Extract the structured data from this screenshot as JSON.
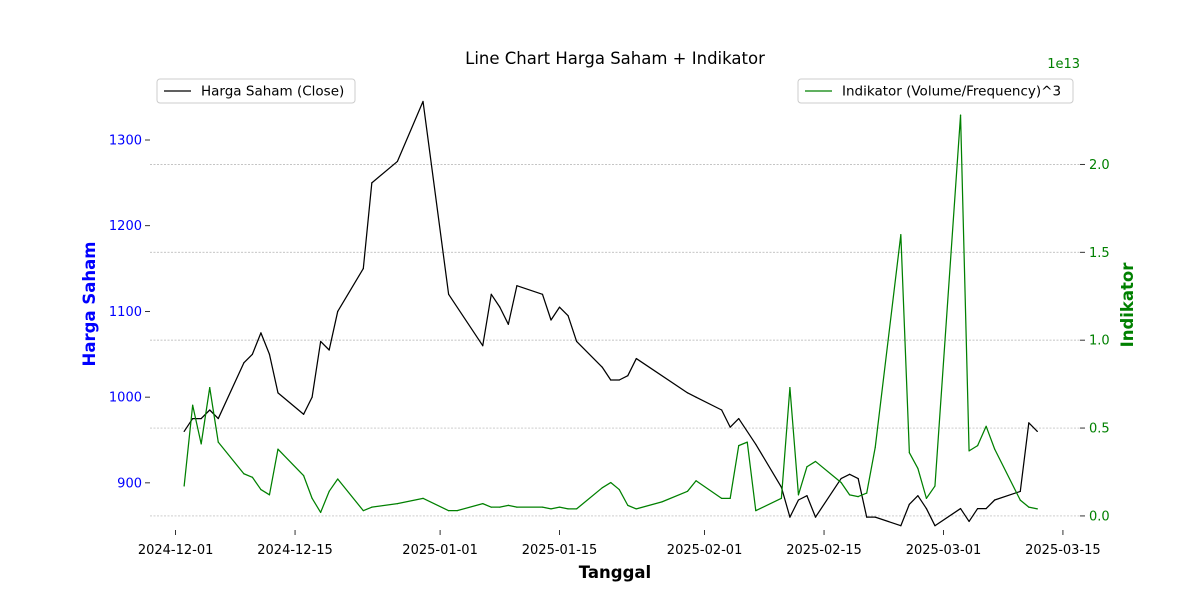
{
  "chart_data": {
    "type": "line",
    "title": "Line Chart Harga Saham + Indikator",
    "xlabel": "Tanggal",
    "ylabel_left": "Harga Saham",
    "ylabel_right": "Indikator",
    "right_offset_label": "1e13",
    "x_ticks": [
      "2024-12-01",
      "2024-12-15",
      "2025-01-01",
      "2025-01-15",
      "2025-02-01",
      "2025-02-15",
      "2025-03-01",
      "2025-03-15"
    ],
    "x_range": [
      "2024-11-28",
      "2025-03-17"
    ],
    "y_left_ticks": [
      900,
      1000,
      1100,
      1200,
      1300
    ],
    "y_left_range": [
      845,
      1370
    ],
    "y_right_ticks": [
      "0.0",
      "0.5",
      "1.0",
      "1.5",
      "2.0"
    ],
    "y_right_range": [
      -0.08,
      2.48
    ],
    "grid": "horizontal dashed on right axis",
    "legend_left": {
      "label": "Harga Saham (Close)",
      "placement": "top-left"
    },
    "legend_right": {
      "label": "Indikator (Volume/Frequency)^3",
      "placement": "top-right"
    },
    "colors": {
      "price": "#000000",
      "indicator": "#008000",
      "left_axis": "#0000ff",
      "right_axis": "#008000"
    },
    "series": [
      {
        "name": "Harga Saham (Close)",
        "axis": "left",
        "points": [
          [
            "2024-12-02",
            960
          ],
          [
            "2024-12-03",
            975
          ],
          [
            "2024-12-04",
            975
          ],
          [
            "2024-12-05",
            985
          ],
          [
            "2024-12-06",
            975
          ],
          [
            "2024-12-09",
            1040
          ],
          [
            "2024-12-10",
            1050
          ],
          [
            "2024-12-11",
            1075
          ],
          [
            "2024-12-12",
            1050
          ],
          [
            "2024-12-13",
            1005
          ],
          [
            "2024-12-16",
            980
          ],
          [
            "2024-12-17",
            1000
          ],
          [
            "2024-12-18",
            1065
          ],
          [
            "2024-12-19",
            1055
          ],
          [
            "2024-12-20",
            1100
          ],
          [
            "2024-12-23",
            1150
          ],
          [
            "2024-12-24",
            1250
          ],
          [
            "2024-12-27",
            1275
          ],
          [
            "2024-12-30",
            1345
          ],
          [
            "2025-01-02",
            1120
          ],
          [
            "2025-01-06",
            1060
          ],
          [
            "2025-01-07",
            1120
          ],
          [
            "2025-01-08",
            1105
          ],
          [
            "2025-01-09",
            1085
          ],
          [
            "2025-01-10",
            1130
          ],
          [
            "2025-01-13",
            1120
          ],
          [
            "2025-01-14",
            1090
          ],
          [
            "2025-01-15",
            1105
          ],
          [
            "2025-01-16",
            1095
          ],
          [
            "2025-01-17",
            1065
          ],
          [
            "2025-01-20",
            1035
          ],
          [
            "2025-01-21",
            1020
          ],
          [
            "2025-01-22",
            1020
          ],
          [
            "2025-01-23",
            1025
          ],
          [
            "2025-01-24",
            1045
          ],
          [
            "2025-01-30",
            1005
          ],
          [
            "2025-01-31",
            1000
          ],
          [
            "2025-02-03",
            985
          ],
          [
            "2025-02-04",
            965
          ],
          [
            "2025-02-05",
            975
          ],
          [
            "2025-02-07",
            945
          ],
          [
            "2025-02-10",
            895
          ],
          [
            "2025-02-11",
            860
          ],
          [
            "2025-02-12",
            880
          ],
          [
            "2025-02-13",
            885
          ],
          [
            "2025-02-14",
            860
          ],
          [
            "2025-02-17",
            905
          ],
          [
            "2025-02-18",
            910
          ],
          [
            "2025-02-19",
            905
          ],
          [
            "2025-02-20",
            860
          ],
          [
            "2025-02-21",
            860
          ],
          [
            "2025-02-24",
            850
          ],
          [
            "2025-02-25",
            875
          ],
          [
            "2025-02-26",
            885
          ],
          [
            "2025-02-27",
            870
          ],
          [
            "2025-02-28",
            850
          ],
          [
            "2025-03-03",
            870
          ],
          [
            "2025-03-04",
            855
          ],
          [
            "2025-03-05",
            870
          ],
          [
            "2025-03-06",
            870
          ],
          [
            "2025-03-07",
            880
          ],
          [
            "2025-03-10",
            890
          ],
          [
            "2025-03-11",
            970
          ],
          [
            "2025-03-12",
            960
          ]
        ]
      },
      {
        "name": "Indikator (Volume/Frequency)^3",
        "axis": "right",
        "points": [
          [
            "2024-12-02",
            0.17
          ],
          [
            "2024-12-03",
            0.63
          ],
          [
            "2024-12-04",
            0.41
          ],
          [
            "2024-12-05",
            0.73
          ],
          [
            "2024-12-06",
            0.42
          ],
          [
            "2024-12-09",
            0.24
          ],
          [
            "2024-12-10",
            0.22
          ],
          [
            "2024-12-11",
            0.15
          ],
          [
            "2024-12-12",
            0.12
          ],
          [
            "2024-12-13",
            0.38
          ],
          [
            "2024-12-16",
            0.23
          ],
          [
            "2024-12-17",
            0.1
          ],
          [
            "2024-12-18",
            0.02
          ],
          [
            "2024-12-19",
            0.14
          ],
          [
            "2024-12-20",
            0.21
          ],
          [
            "2024-12-23",
            0.03
          ],
          [
            "2024-12-24",
            0.05
          ],
          [
            "2024-12-27",
            0.07
          ],
          [
            "2024-12-30",
            0.1
          ],
          [
            "2025-01-02",
            0.03
          ],
          [
            "2025-01-03",
            0.03
          ],
          [
            "2025-01-06",
            0.07
          ],
          [
            "2025-01-07",
            0.05
          ],
          [
            "2025-01-08",
            0.05
          ],
          [
            "2025-01-09",
            0.06
          ],
          [
            "2025-01-10",
            0.05
          ],
          [
            "2025-01-13",
            0.05
          ],
          [
            "2025-01-14",
            0.04
          ],
          [
            "2025-01-15",
            0.05
          ],
          [
            "2025-01-16",
            0.04
          ],
          [
            "2025-01-17",
            0.04
          ],
          [
            "2025-01-20",
            0.16
          ],
          [
            "2025-01-21",
            0.19
          ],
          [
            "2025-01-22",
            0.15
          ],
          [
            "2025-01-23",
            0.06
          ],
          [
            "2025-01-24",
            0.04
          ],
          [
            "2025-01-27",
            0.08
          ],
          [
            "2025-01-30",
            0.14
          ],
          [
            "2025-01-31",
            0.2
          ],
          [
            "2025-02-03",
            0.1
          ],
          [
            "2025-02-04",
            0.1
          ],
          [
            "2025-02-05",
            0.4
          ],
          [
            "2025-02-06",
            0.42
          ],
          [
            "2025-02-07",
            0.03
          ],
          [
            "2025-02-10",
            0.1
          ],
          [
            "2025-02-11",
            0.73
          ],
          [
            "2025-02-12",
            0.12
          ],
          [
            "2025-02-13",
            0.28
          ],
          [
            "2025-02-14",
            0.31
          ],
          [
            "2025-02-17",
            0.19
          ],
          [
            "2025-02-18",
            0.12
          ],
          [
            "2025-02-19",
            0.11
          ],
          [
            "2025-02-20",
            0.13
          ],
          [
            "2025-02-21",
            0.39
          ],
          [
            "2025-02-24",
            1.6
          ],
          [
            "2025-02-25",
            0.36
          ],
          [
            "2025-02-26",
            0.27
          ],
          [
            "2025-02-27",
            0.1
          ],
          [
            "2025-02-28",
            0.17
          ],
          [
            "2025-03-03",
            2.28
          ],
          [
            "2025-03-04",
            0.37
          ],
          [
            "2025-03-05",
            0.4
          ],
          [
            "2025-03-06",
            0.51
          ],
          [
            "2025-03-07",
            0.38
          ],
          [
            "2025-03-10",
            0.09
          ],
          [
            "2025-03-11",
            0.05
          ],
          [
            "2025-03-12",
            0.04
          ]
        ]
      }
    ]
  }
}
